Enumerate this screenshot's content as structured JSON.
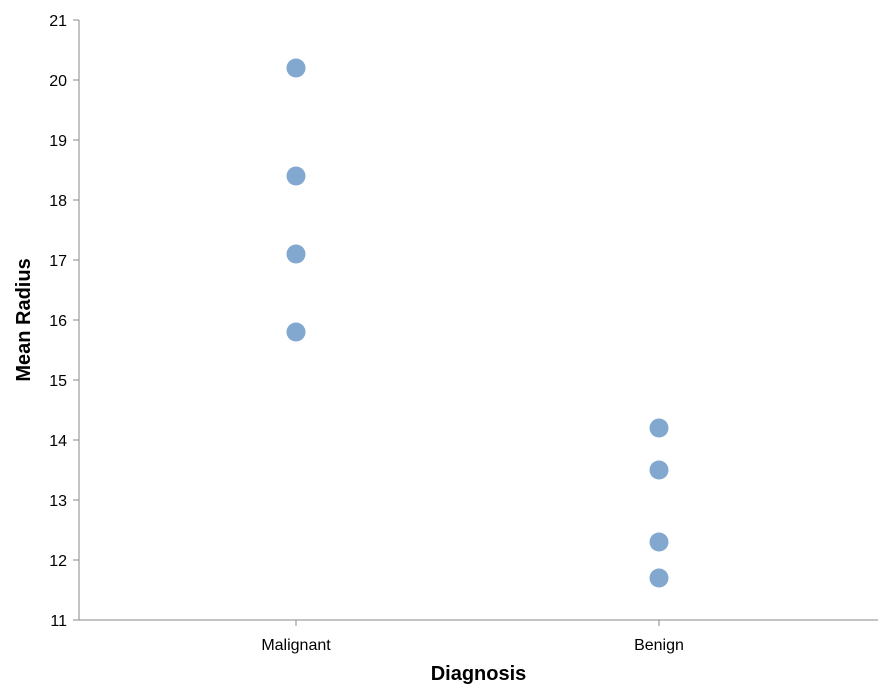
{
  "chart_data": {
    "type": "scatter",
    "xlabel": "Diagnosis",
    "ylabel": "Mean Radius",
    "categories": [
      "Malignant",
      "Benign"
    ],
    "ylim": [
      11,
      21
    ],
    "yticks": [
      11,
      12,
      13,
      14,
      15,
      16,
      17,
      18,
      19,
      20,
      21
    ],
    "grid": false,
    "points": [
      {
        "x": "Malignant",
        "y": 20.2
      },
      {
        "x": "Malignant",
        "y": 18.4
      },
      {
        "x": "Malignant",
        "y": 17.1
      },
      {
        "x": "Malignant",
        "y": 15.8
      },
      {
        "x": "Benign",
        "y": 14.2
      },
      {
        "x": "Benign",
        "y": 13.5
      },
      {
        "x": "Benign",
        "y": 12.3
      },
      {
        "x": "Benign",
        "y": 11.7
      }
    ],
    "point_color": "#7ba3cc"
  }
}
